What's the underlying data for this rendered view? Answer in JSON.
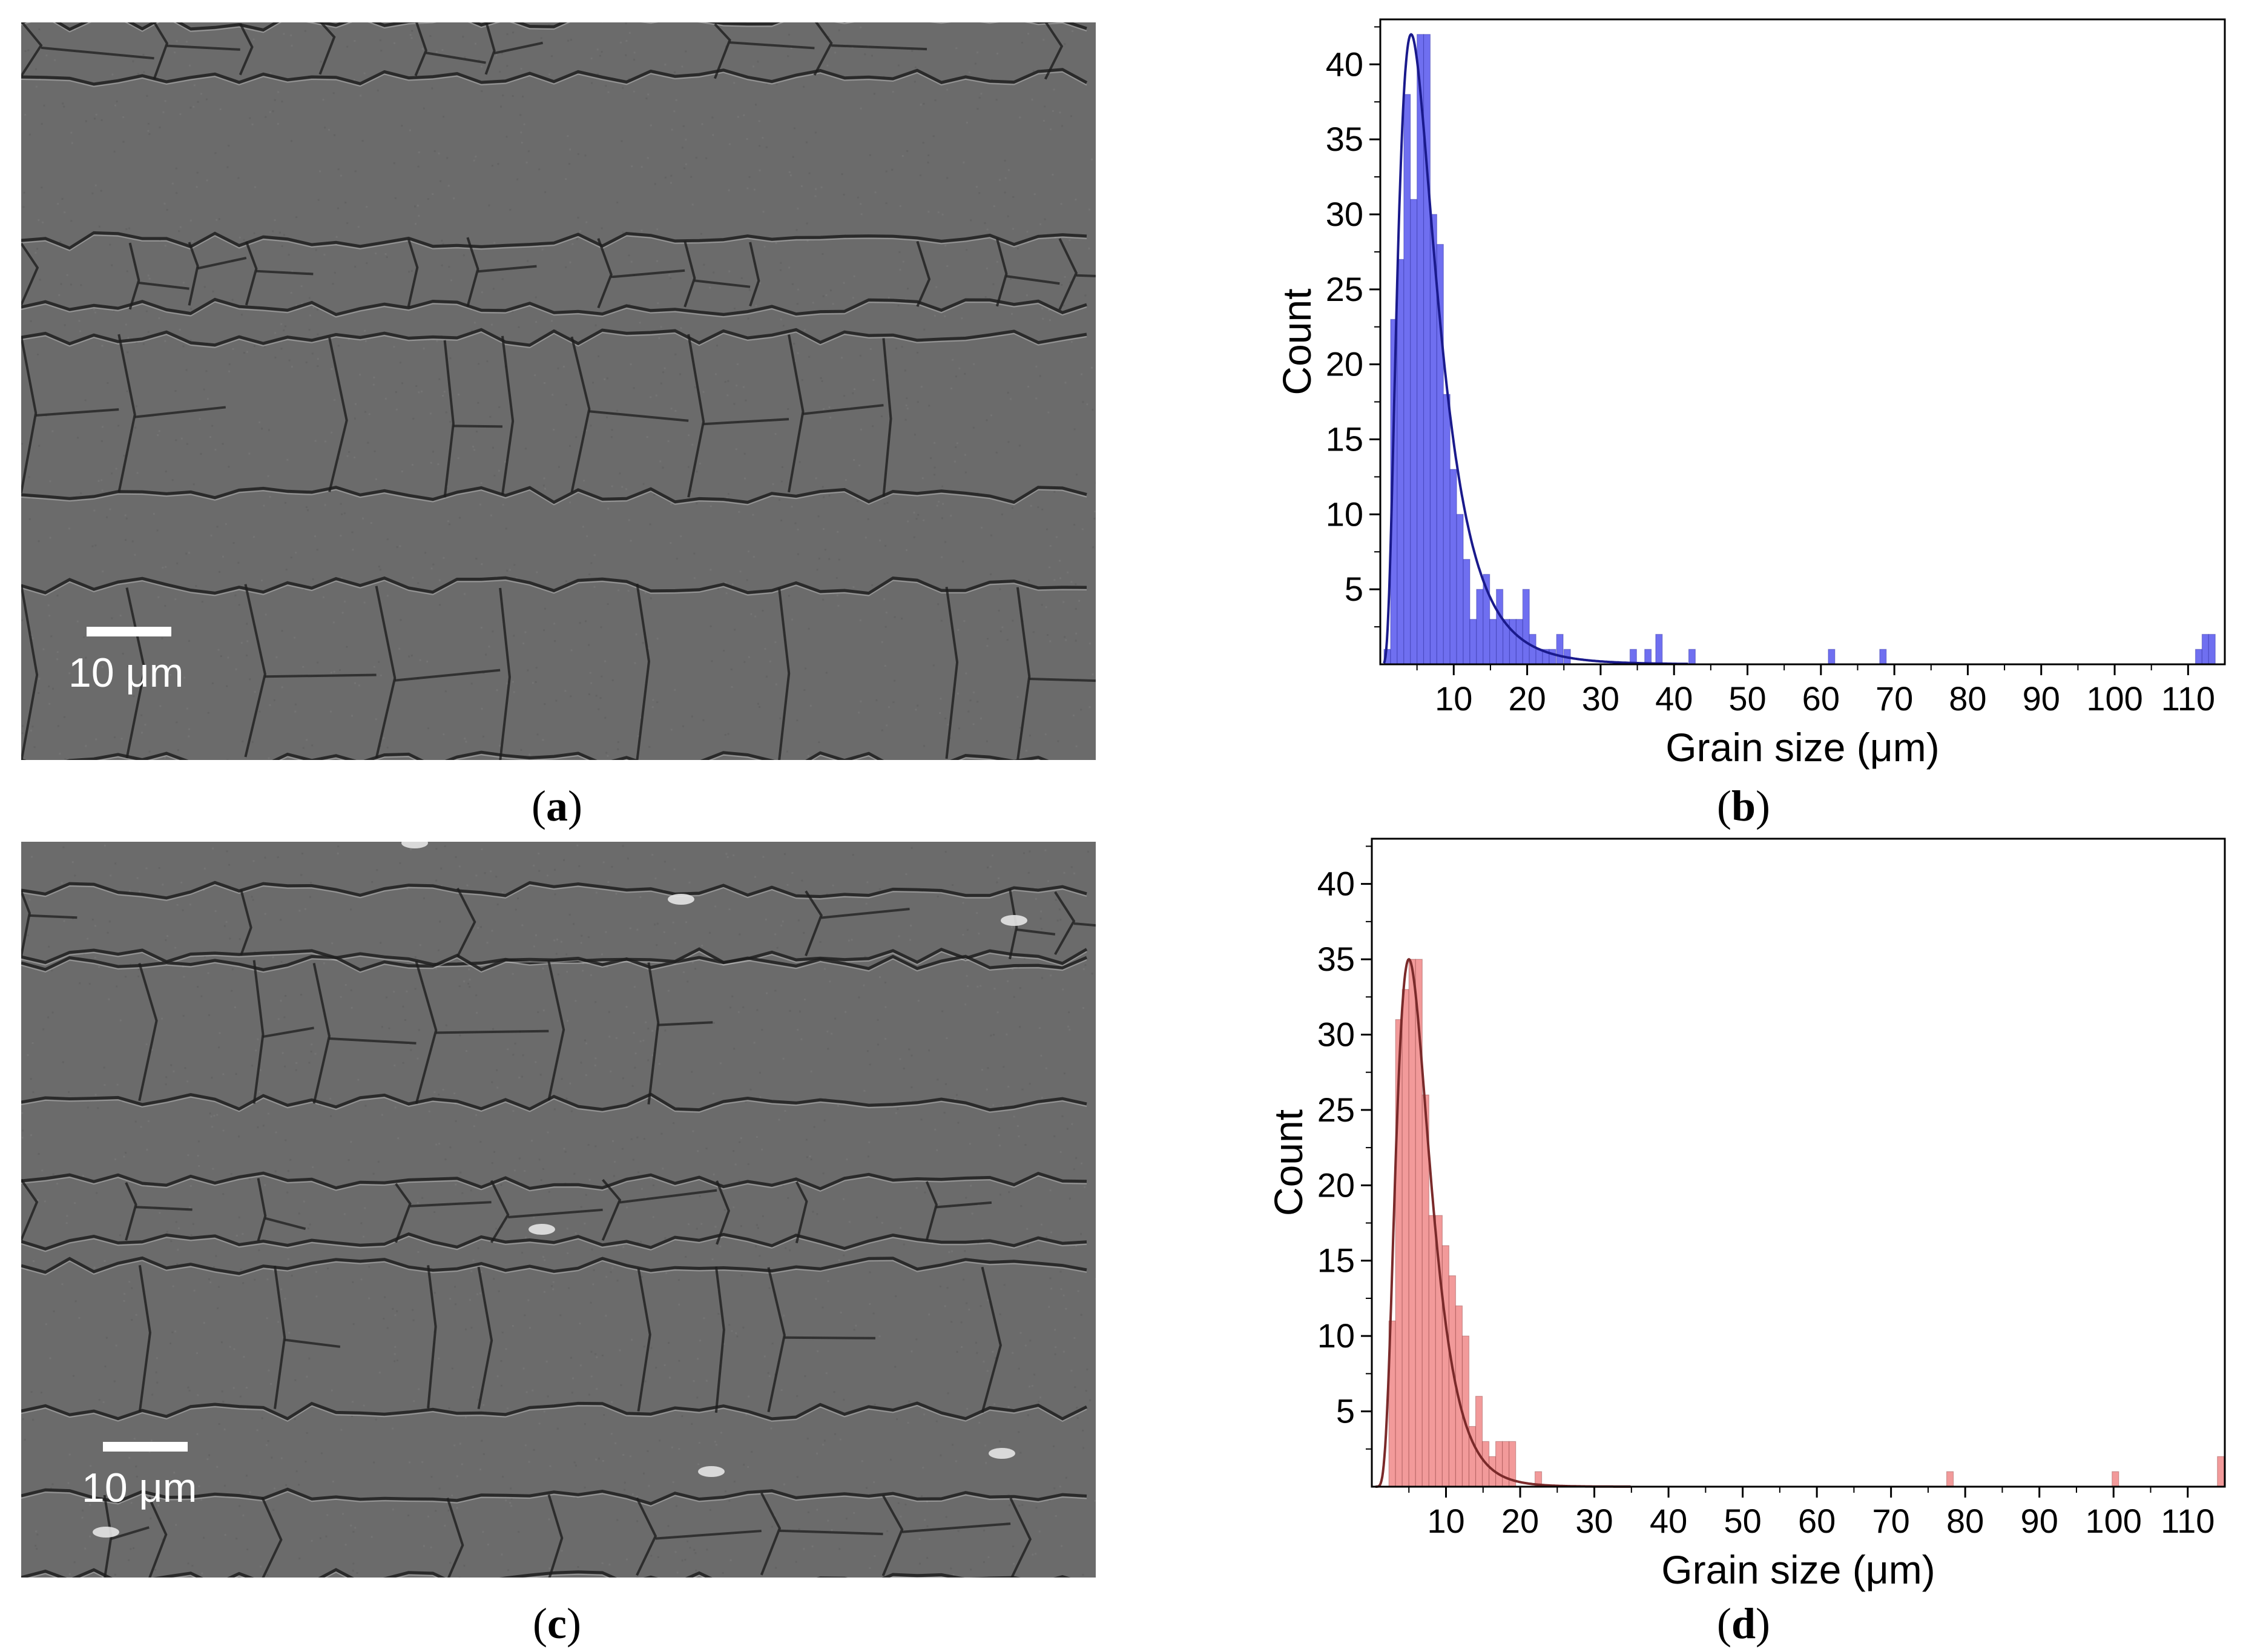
{
  "panels": {
    "a": {
      "caption_letter": "a",
      "scale_label": "10 μm"
    },
    "b": {
      "caption_letter": "b"
    },
    "c": {
      "caption_letter": "c",
      "scale_label": "10 μm"
    },
    "d": {
      "caption_letter": "d"
    }
  },
  "caption_open": "(",
  "caption_close": ")",
  "colors": {
    "blue_bar": "#6f6ff0",
    "blue_curve": "#1a1a8c",
    "red_bar": "#f29a9a",
    "red_curve": "#7a2a2a"
  },
  "chart_data": [
    {
      "panel": "b",
      "type": "bar",
      "xlabel": "Grain size (μm)",
      "ylabel": "Count",
      "xlim": [
        0,
        115
      ],
      "ylim": [
        0,
        43
      ],
      "xticks": [
        10,
        20,
        30,
        40,
        50,
        60,
        70,
        80,
        90,
        100,
        110
      ],
      "yticks": [
        5,
        10,
        15,
        20,
        25,
        30,
        35,
        40
      ],
      "bin_width": 0.9,
      "bars": [
        [
          0.5,
          1
        ],
        [
          1.4,
          23
        ],
        [
          2.3,
          27
        ],
        [
          3.2,
          38
        ],
        [
          4.1,
          31
        ],
        [
          5,
          42
        ],
        [
          5.9,
          42
        ],
        [
          6.8,
          30
        ],
        [
          7.7,
          28
        ],
        [
          8.6,
          18
        ],
        [
          9.5,
          13
        ],
        [
          10.4,
          10
        ],
        [
          11.3,
          7
        ],
        [
          12.2,
          3
        ],
        [
          13.1,
          5
        ],
        [
          14,
          6
        ],
        [
          14.9,
          3
        ],
        [
          15.8,
          5
        ],
        [
          16.7,
          3
        ],
        [
          17.6,
          3
        ],
        [
          18.5,
          3
        ],
        [
          19.4,
          5
        ],
        [
          20.3,
          2
        ],
        [
          21.2,
          1
        ],
        [
          22.1,
          1
        ],
        [
          23,
          1
        ],
        [
          24,
          2
        ],
        [
          25,
          1
        ],
        [
          34,
          1
        ],
        [
          36,
          1
        ],
        [
          37.5,
          2
        ],
        [
          42,
          1
        ],
        [
          61,
          1
        ],
        [
          68,
          1
        ],
        [
          111,
          1
        ],
        [
          111.9,
          2
        ],
        [
          112.8,
          2
        ]
      ],
      "fit_curve": {
        "type": "lognormal",
        "peak_x": 4.2,
        "peak_y": 42,
        "sigma": 0.6,
        "x_range": [
          0.5,
          42
        ]
      }
    },
    {
      "panel": "d",
      "type": "bar",
      "xlabel": "Grain size (μm)",
      "ylabel": "Count",
      "xlim": [
        0,
        115
      ],
      "ylim": [
        0,
        43
      ],
      "xticks": [
        10,
        20,
        30,
        40,
        50,
        60,
        70,
        80,
        90,
        100,
        110
      ],
      "yticks": [
        5,
        10,
        15,
        20,
        25,
        30,
        35,
        40
      ],
      "bin_width": 0.9,
      "bars": [
        [
          2.3,
          11
        ],
        [
          3.2,
          31
        ],
        [
          4.1,
          33
        ],
        [
          5,
          35
        ],
        [
          5.9,
          35
        ],
        [
          6.8,
          26
        ],
        [
          7.7,
          18
        ],
        [
          8.6,
          18
        ],
        [
          9.5,
          16
        ],
        [
          10.4,
          14
        ],
        [
          11.3,
          12
        ],
        [
          12.2,
          10
        ],
        [
          13.1,
          4
        ],
        [
          14,
          6
        ],
        [
          14.9,
          3
        ],
        [
          15.8,
          2
        ],
        [
          16.7,
          3
        ],
        [
          17.6,
          3
        ],
        [
          18.5,
          3
        ],
        [
          22,
          1
        ],
        [
          77.5,
          1
        ],
        [
          99.8,
          1
        ],
        [
          114,
          2
        ]
      ],
      "fit_curve": {
        "type": "lognormal",
        "peak_x": 5.0,
        "peak_y": 35,
        "sigma": 0.45,
        "x_range": [
          0.5,
          35
        ]
      }
    }
  ]
}
